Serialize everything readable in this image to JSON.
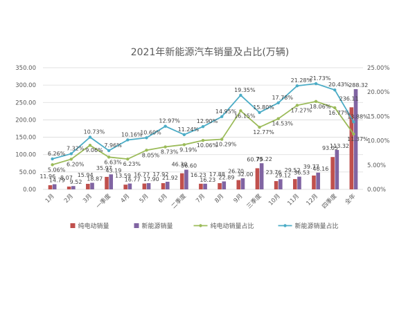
{
  "chart_data": {
    "type": "bar",
    "title": "2021年新能源汽车销量及占比(万辆)",
    "categories": [
      "1月",
      "2月",
      "3月",
      "一季度",
      "4月",
      "5月",
      "6月",
      "二季度",
      "7月",
      "8月",
      "9月",
      "三季度",
      "10月",
      "11月",
      "12月",
      "四季度",
      "全年"
    ],
    "ylim_left": [
      0,
      350
    ],
    "yticks_left": [
      "0.00",
      "50.00",
      "100.00",
      "150.00",
      "200.00",
      "250.00",
      "300.00",
      "350.00"
    ],
    "ylim_right": [
      0,
      25
    ],
    "yticks_right": [
      "0.00%",
      "5.00%",
      "10.00%",
      "15.00%",
      "20.00%",
      "25.00%"
    ],
    "grid": true,
    "legend_position": "bottom",
    "series": [
      {
        "name": "纯电动销量",
        "type": "bar",
        "axis": "left",
        "color": "#c0504d",
        "values": [
          11.96,
          8.07,
          15.94,
          35.97,
          13.59,
          16.77,
          17.92,
          46.3,
          16.23,
          17.88,
          26.7,
          60.79,
          23.76,
          29.52,
          39.77,
          93.05,
          236.11
        ],
        "labels": [
          "11.96",
          "8.07",
          "15.94",
          "35.97",
          "13.59",
          "16.77",
          "17.92",
          "46.30",
          "16.23",
          "17.88",
          "26.70",
          "60.79",
          "23.76",
          "29.52",
          "39.77",
          "93.05",
          "236.11"
        ]
      },
      {
        "name": "新能源销量",
        "type": "bar",
        "axis": "left",
        "color": "#8064a2",
        "values": [
          14.79,
          9.52,
          18.87,
          43.19,
          16.77,
          17.9,
          21.92,
          56.6,
          16.23,
          22.89,
          32.0,
          75.22,
          29.12,
          36.53,
          48.16,
          113.32,
          288.32
        ],
        "labels": [
          "14.79",
          "9.52",
          "18.87",
          "43.19",
          "16.77",
          "17.90",
          "21.92",
          "56.60",
          "16.23",
          "22.89",
          "32.00",
          "75.22",
          "29.12",
          "36.53",
          "48.16",
          "113.32",
          "288.32"
        ]
      },
      {
        "name": "纯电动销量占比",
        "type": "line",
        "axis": "right",
        "color": "#9bbb59",
        "values": [
          5.06,
          6.2,
          9.06,
          6.63,
          6.23,
          8.05,
          8.73,
          9.19,
          10.06,
          10.29,
          16.15,
          12.77,
          14.53,
          17.27,
          18.06,
          16.77,
          11.37
        ],
        "labels": [
          "5.06%",
          "6.20%",
          "9.06%",
          "6.63%",
          "6.23%",
          "8.05%",
          "8.73%",
          "9.19%",
          "10.06%",
          "10.29%",
          "16.15%",
          "12.77%",
          "14.53%",
          "17.27%",
          "18.06%",
          "16.77%",
          "11.37%"
        ]
      },
      {
        "name": "新能源销量占比",
        "type": "line",
        "axis": "right",
        "color": "#4bacc6",
        "values": [
          6.26,
          7.32,
          10.73,
          7.96,
          10.16,
          10.6,
          12.97,
          11.24,
          12.9,
          14.95,
          19.35,
          15.8,
          17.78,
          21.28,
          21.73,
          20.43,
          13.88
        ],
        "labels": [
          "6.26%",
          "7.32%",
          "10.73%",
          "7.96%",
          "10.16%",
          "10.60%",
          "12.97%",
          "11.24%",
          "12.90%",
          "14.95%",
          "19.35%",
          "15.80%",
          "17.78%",
          "21.28%",
          "21.73%",
          "20.43%",
          "13.88%"
        ]
      }
    ]
  }
}
